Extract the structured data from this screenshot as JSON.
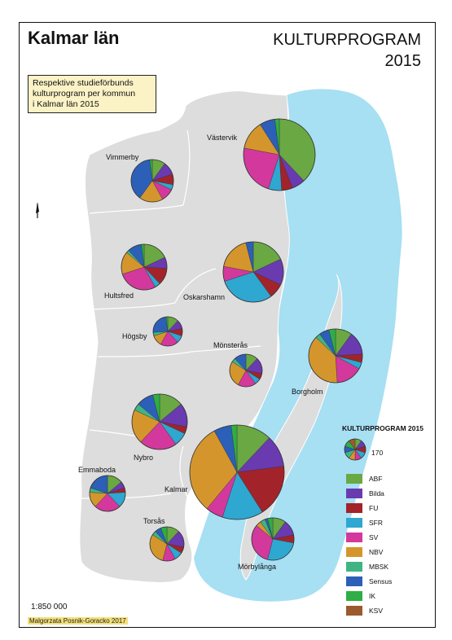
{
  "title": "Kalmar län",
  "main_title": [
    "KULTURPROGRAM",
    "2015"
  ],
  "description": [
    "Respektive studieförbunds",
    "kulturprogram per kommun",
    "i Kalmar län 2015"
  ],
  "scale": "1:850 000",
  "credit": "Malgorzata Posnik-Goracko 2017",
  "legend": {
    "title": "KULTURPROGRAM 2015",
    "reference_value": "170",
    "categories": [
      {
        "name": "ABF",
        "color": "#6aa843"
      },
      {
        "name": "Bilda",
        "color": "#6a3ab0"
      },
      {
        "name": "FU",
        "color": "#a3232a"
      },
      {
        "name": "SFR",
        "color": "#2ea7d1"
      },
      {
        "name": "SV",
        "color": "#d3389c"
      },
      {
        "name": "NBV",
        "color": "#d4962c"
      },
      {
        "name": "MBSK",
        "color": "#40b483"
      },
      {
        "name": "Sensus",
        "color": "#2c5fb8"
      },
      {
        "name": "IK",
        "color": "#2eae45"
      },
      {
        "name": "KSV",
        "color": "#9a5a2e"
      }
    ]
  },
  "colors": {
    "sea": "#a7dff3",
    "land": "#dddddd",
    "border": "#ffffff"
  },
  "municipalities": [
    {
      "name": "Västervik",
      "shares": {
        "ABF": 38,
        "Bilda": 6,
        "FU": 5,
        "SFR": 6,
        "SV": 23,
        "NBV": 13,
        "MBSK": 0,
        "Sensus": 7,
        "IK": 2,
        "KSV": 0
      }
    },
    {
      "name": "Vimmerby",
      "shares": {
        "ABF": 10,
        "Bilda": 10,
        "FU": 8,
        "SFR": 4,
        "SV": 10,
        "NBV": 18,
        "MBSK": 0,
        "Sensus": 38,
        "IK": 2,
        "KSV": 0
      }
    },
    {
      "name": "Hultsfred",
      "shares": {
        "ABF": 18,
        "Bilda": 8,
        "FU": 12,
        "SFR": 4,
        "SV": 28,
        "NBV": 16,
        "MBSK": 2,
        "Sensus": 10,
        "IK": 2,
        "KSV": 0
      }
    },
    {
      "name": "Oskarshamn",
      "shares": {
        "ABF": 18,
        "Bilda": 14,
        "FU": 8,
        "SFR": 30,
        "SV": 8,
        "NBV": 18,
        "MBSK": 0,
        "Sensus": 4,
        "IK": 0,
        "KSV": 0
      }
    },
    {
      "name": "Högsby",
      "shares": {
        "ABF": 12,
        "Bilda": 10,
        "FU": 8,
        "SFR": 8,
        "SV": 20,
        "NBV": 12,
        "MBSK": 4,
        "Sensus": 24,
        "IK": 2,
        "KSV": 0
      }
    },
    {
      "name": "Mönsterås",
      "shares": {
        "ABF": 12,
        "Bilda": 16,
        "FU": 6,
        "SFR": 6,
        "SV": 18,
        "NBV": 26,
        "MBSK": 4,
        "Sensus": 12,
        "IK": 0,
        "KSV": 0
      }
    },
    {
      "name": "Borgholm",
      "shares": {
        "ABF": 10,
        "Bilda": 14,
        "FU": 5,
        "SFR": 4,
        "SV": 16,
        "NBV": 38,
        "MBSK": 3,
        "Sensus": 6,
        "IK": 4,
        "KSV": 0
      }
    },
    {
      "name": "Nybro",
      "shares": {
        "ABF": 14,
        "Bilda": 14,
        "FU": 4,
        "SFR": 8,
        "SV": 22,
        "NBV": 20,
        "MBSK": 4,
        "Sensus": 10,
        "IK": 4,
        "KSV": 0
      }
    },
    {
      "name": "Kalmar",
      "shares": {
        "ABF": 12,
        "Bilda": 11,
        "FU": 18,
        "SFR": 14,
        "SV": 6,
        "NBV": 31,
        "MBSK": 0,
        "Sensus": 6,
        "IK": 2,
        "KSV": 0
      }
    },
    {
      "name": "Emmaboda",
      "shares": {
        "ABF": 14,
        "Bilda": 6,
        "FU": 4,
        "SFR": 14,
        "SV": 24,
        "NBV": 14,
        "MBSK": 4,
        "Sensus": 20,
        "IK": 0,
        "KSV": 0
      }
    },
    {
      "name": "Torsås",
      "shares": {
        "ABF": 12,
        "Bilda": 16,
        "FU": 6,
        "SFR": 8,
        "SV": 12,
        "NBV": 30,
        "MBSK": 4,
        "Sensus": 6,
        "IK": 6,
        "KSV": 0
      }
    },
    {
      "name": "Mörbylånga",
      "shares": {
        "ABF": 10,
        "Bilda": 12,
        "FU": 6,
        "SFR": 26,
        "SV": 32,
        "NBV": 4,
        "MBSK": 4,
        "Sensus": 2,
        "IK": 4,
        "KSV": 0
      }
    }
  ]
}
